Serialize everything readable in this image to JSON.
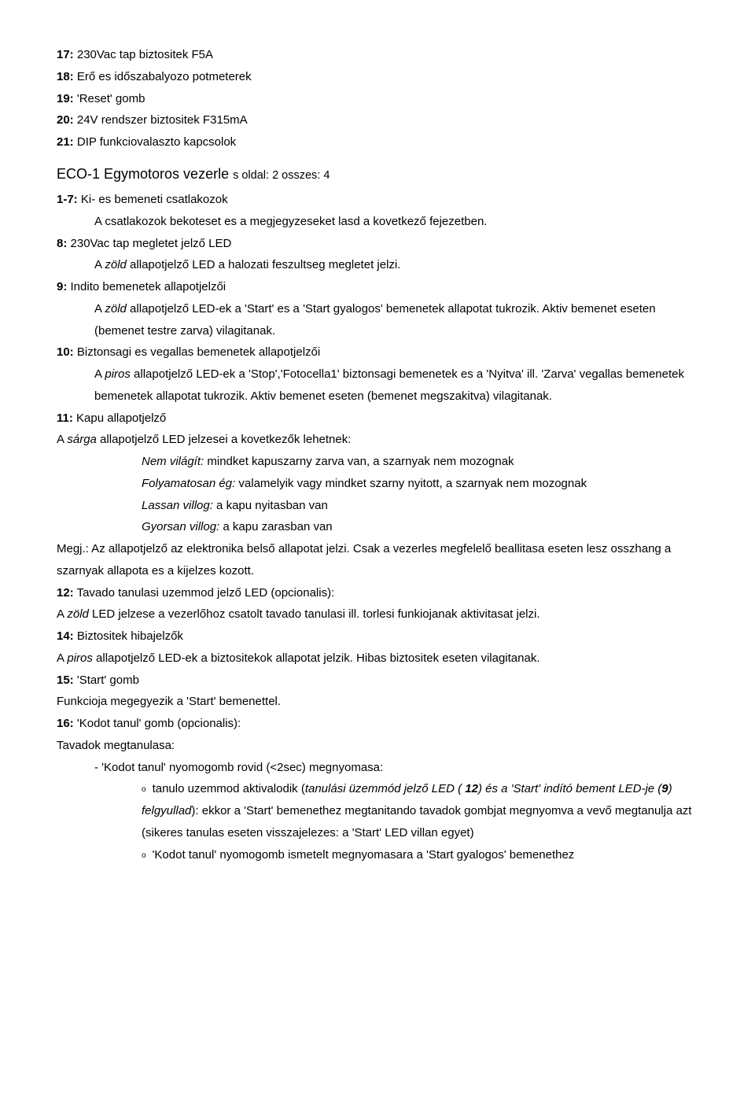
{
  "l17": {
    "num": "17:",
    "text": " 230Vac tap biztositek F5A"
  },
  "l18": {
    "num": "18:",
    "text": " Erő es időszabalyozo potmeterek"
  },
  "l19": {
    "num": "19:",
    "text": " 'Reset' gomb"
  },
  "l20": {
    "num": "20:",
    "text": " 24V rendszer biztositek F315mA"
  },
  "l21": {
    "num": "21:",
    "text": " DIP funkciovalaszto kapcsolok"
  },
  "heading": {
    "prefix": "ECO-1 ",
    "title": "Egymotoros vezerle ",
    "mid": "s",
    "tail": " oldal: 2 osszes: 4"
  },
  "l1_7": {
    "num": "1-7:",
    "text": " Ki- es bemeneti csatlakozok"
  },
  "l1_7_body": "A csatlakozok bekoteset es a megjegyzeseket lasd a kovetkező fejezetben.",
  "l8": {
    "num": "8:",
    "text": " 230Vac tap megletet jelző LED"
  },
  "l8_body_pre": "A ",
  "l8_body_it": "zöld",
  "l8_body_post": " allapotjelző LED a halozati feszultseg megletet jelzi.",
  "l9": {
    "num": "9:",
    "text": " Indito bemenetek allapotjelzői"
  },
  "l9_body_pre": "A ",
  "l9_body_it": "zöld",
  "l9_body_post": " allapotjelző LED-ek a 'Start' es a 'Start gyalogos' bemenetek allapotat tukrozik. Aktiv bemenet eseten (bemenet testre zarva) vilagitanak.",
  "l10": {
    "num": "10:",
    "text": " Biztonsagi es vegallas bemenetek allapotjelzői"
  },
  "l10_body_pre": "A ",
  "l10_body_it": "piros",
  "l10_body_post": " allapotjelző LED-ek a 'Stop','Fotocella1' biztonsagi bemenetek es a 'Nyitva' ill. 'Zarva' vegallas bemenetek bemenetek allapotat tukrozik. Aktiv bemenet eseten (bemenet megszakitva) vilagitanak.",
  "l11": {
    "num": "11:",
    "text": " Kapu allapotjelző"
  },
  "l11_body_pre": "A ",
  "l11_body_it": "sárga",
  "l11_body_post": " allapotjelző LED jelzesei a kovetkezők lehetnek:",
  "b1_it": "Nem világít:",
  "b1_txt": " mindket kapuszarny zarva van, a szarnyak nem mozognak",
  "b2_it": "Folyamatosan ég:",
  "b2_txt": " valamelyik vagy mindket szarny nyitott, a szarnyak nem mozognak",
  "b3_it": "Lassan villog:",
  "b3_txt": " a kapu nyitasban van",
  "b4_it": "Gyorsan villog:",
  "b4_txt": " a kapu zarasban van",
  "megj": "Megj.: Az allapotjelző az elektronika belső allapotat jelzi. Csak a vezerles megfelelő beallitasa eseten lesz osszhang a szarnyak allapota es a kijelzes kozott.",
  "l12": {
    "num": "12:",
    "text": " Tavado tanulasi uzemmod jelző LED (opcionalis):"
  },
  "l12_body_pre": "A ",
  "l12_body_it": "zöld",
  "l12_body_post": " LED jelzese a vezerlőhoz csatolt tavado tanulasi ill. torlesi funkiojanak aktivitasat jelzi.",
  "l14": {
    "num": "14:",
    "text": " Biztositek hibajelzők"
  },
  "l14_body_pre": "A ",
  "l14_body_it": "piros",
  "l14_body_post": " allapotjelző LED-ek a biztositekok allapotat jelzik. Hibas biztositek eseten vilagitanak.",
  "l15": {
    "num": "15:",
    "text": " 'Start'  gomb"
  },
  "l15_body": "Funkcioja megegyezik a 'Start' bemenettel.",
  "l16": {
    "num": "16:",
    "text": " 'Kodot tanul' gomb (opcionalis):"
  },
  "tav_title": "Tavadok megtanulasa:",
  "dash1": "'Kodot tanul' nyomogomb rovid (<2sec) megnyomasa:",
  "o1_pre": "tanulo uzemmod aktivalodik (",
  "o1_it1": "tanulási üzemmód jelző LED (",
  "o1_num": " 12",
  "o1_it2": ") és a 'Start' indító bement LED-je (",
  "o1_num2": "9",
  "o1_it3": ") felgyullad",
  "o1_post": "): ekkor a 'Start' bemenethez megtanitando tavadok gombjat megnyomva a vevő megtanulja azt (sikeres tanulas eseten visszajelezes: a 'Start' LED villan egyet)",
  "o2": "'Kodot tanul' nyomogomb ismetelt megnyomasara a 'Start gyalogos' bemenethez"
}
